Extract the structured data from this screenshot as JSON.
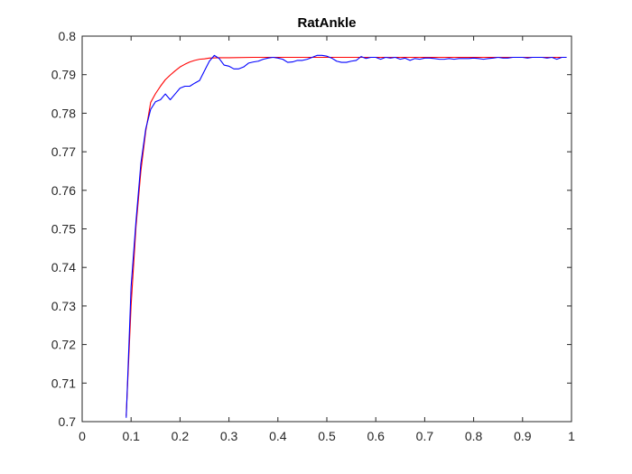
{
  "figure": {
    "background": "#ffffff",
    "axes_color": "#262626"
  },
  "chart_data": {
    "type": "line",
    "title": "RatAnkle",
    "xlabel": "",
    "ylabel": "",
    "xlim": [
      0,
      1
    ],
    "ylim": [
      0.7,
      0.8
    ],
    "grid": false,
    "legend": "none",
    "xticks": [
      0,
      0.1,
      0.2,
      0.3,
      0.4,
      0.5,
      0.6,
      0.7,
      0.8,
      0.9,
      1
    ],
    "xtick_labels": [
      "0",
      "0.1",
      "0.2",
      "0.3",
      "0.4",
      "0.5",
      "0.6",
      "0.7",
      "0.8",
      "0.9",
      "1"
    ],
    "yticks": [
      0.7,
      0.71,
      0.72,
      0.73,
      0.74,
      0.75,
      0.76,
      0.77,
      0.78,
      0.79,
      0.8
    ],
    "ytick_labels": [
      "0.7",
      "0.71",
      "0.72",
      "0.73",
      "0.74",
      "0.75",
      "0.76",
      "0.77",
      "0.78",
      "0.79",
      "0.8"
    ],
    "series": [
      {
        "color": "#ff0000",
        "x": [
          0.09,
          0.1,
          0.11,
          0.12,
          0.13,
          0.14,
          0.15,
          0.16,
          0.17,
          0.18,
          0.19,
          0.2,
          0.21,
          0.22,
          0.23,
          0.24,
          0.25,
          0.26,
          0.28,
          0.3,
          0.35,
          0.4,
          0.5,
          0.6,
          0.7,
          0.8,
          0.9,
          0.99
        ],
        "y": [
          0.7015,
          0.7301,
          0.7505,
          0.765,
          0.7754,
          0.7828,
          0.7851,
          0.787,
          0.7887,
          0.7899,
          0.791,
          0.792,
          0.7927,
          0.7933,
          0.7937,
          0.794,
          0.7941,
          0.7943,
          0.7944,
          0.7944,
          0.7945,
          0.7945,
          0.7945,
          0.7945,
          0.7945,
          0.7945,
          0.7945,
          0.7945
        ]
      },
      {
        "color": "#0000ff",
        "x": [
          0.09,
          0.1,
          0.11,
          0.12,
          0.13,
          0.14,
          0.15,
          0.16,
          0.17,
          0.18,
          0.19,
          0.2,
          0.21,
          0.22,
          0.23,
          0.24,
          0.25,
          0.26,
          0.27,
          0.28,
          0.29,
          0.3,
          0.31,
          0.32,
          0.33,
          0.34,
          0.35,
          0.36,
          0.37,
          0.38,
          0.39,
          0.4,
          0.41,
          0.42,
          0.43,
          0.44,
          0.45,
          0.46,
          0.47,
          0.48,
          0.49,
          0.5,
          0.51,
          0.52,
          0.53,
          0.54,
          0.55,
          0.56,
          0.57,
          0.58,
          0.59,
          0.6,
          0.61,
          0.62,
          0.63,
          0.64,
          0.65,
          0.66,
          0.67,
          0.68,
          0.69,
          0.7,
          0.71,
          0.72,
          0.73,
          0.74,
          0.75,
          0.76,
          0.77,
          0.78,
          0.79,
          0.8,
          0.81,
          0.82,
          0.83,
          0.84,
          0.85,
          0.86,
          0.87,
          0.88,
          0.89,
          0.9,
          0.91,
          0.92,
          0.93,
          0.94,
          0.95,
          0.96,
          0.97,
          0.98,
          0.99
        ],
        "y": [
          0.701,
          0.735,
          0.752,
          0.767,
          0.776,
          0.781,
          0.783,
          0.7835,
          0.785,
          0.7835,
          0.785,
          0.7865,
          0.787,
          0.787,
          0.7878,
          0.7885,
          0.791,
          0.7935,
          0.795,
          0.7942,
          0.7925,
          0.7922,
          0.7915,
          0.7915,
          0.792,
          0.793,
          0.7933,
          0.7935,
          0.794,
          0.7943,
          0.7945,
          0.7943,
          0.794,
          0.7932,
          0.7933,
          0.7937,
          0.7937,
          0.794,
          0.7945,
          0.795,
          0.795,
          0.7948,
          0.7943,
          0.7935,
          0.7932,
          0.7932,
          0.7935,
          0.7937,
          0.7947,
          0.7942,
          0.7945,
          0.7945,
          0.794,
          0.7945,
          0.7943,
          0.7945,
          0.794,
          0.7943,
          0.7937,
          0.7942,
          0.794,
          0.7943,
          0.7943,
          0.7942,
          0.794,
          0.794,
          0.7942,
          0.794,
          0.7942,
          0.7942,
          0.7942,
          0.7943,
          0.7942,
          0.794,
          0.7942,
          0.7943,
          0.7945,
          0.7943,
          0.7943,
          0.7945,
          0.7945,
          0.7945,
          0.7943,
          0.7945,
          0.7945,
          0.7945,
          0.7943,
          0.7945,
          0.794,
          0.7945,
          0.7945
        ]
      }
    ]
  }
}
